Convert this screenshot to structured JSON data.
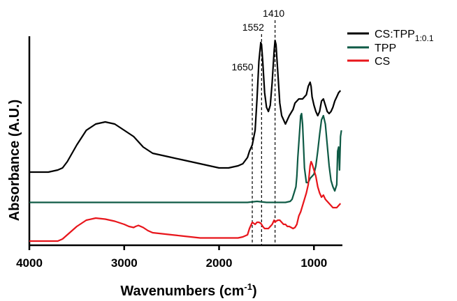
{
  "chart_data": {
    "type": "line",
    "xlabel": "Wavenumbers (cm",
    "xlabel_sup": "-1",
    "xlabel_end": ")",
    "ylabel": "Absorbance  (A.U.)",
    "xlim": [
      4000,
      700
    ],
    "x_reversed": true,
    "x_ticks": [
      4000,
      3000,
      2000,
      1000
    ],
    "x_tick_labels": [
      "4000",
      "3000",
      "2000",
      "1000"
    ],
    "y_ticks_shown": false,
    "grid": false,
    "legend_position": "top-right",
    "annotations": [
      {
        "x": 1650,
        "label": "1650"
      },
      {
        "x": 1552,
        "label": "1552"
      },
      {
        "x": 1410,
        "label": "1410"
      }
    ],
    "series": [
      {
        "name": "CS:TPP",
        "name_sub": "1:0.1",
        "color": "#000000",
        "x": [
          4000,
          3900,
          3800,
          3700,
          3650,
          3600,
          3500,
          3400,
          3300,
          3200,
          3100,
          3000,
          2900,
          2800,
          2700,
          2600,
          2500,
          2400,
          2300,
          2200,
          2100,
          2000,
          1900,
          1800,
          1750,
          1700,
          1680,
          1650,
          1620,
          1600,
          1580,
          1560,
          1552,
          1540,
          1520,
          1500,
          1480,
          1460,
          1440,
          1420,
          1410,
          1400,
          1380,
          1360,
          1340,
          1300,
          1260,
          1220,
          1200,
          1160,
          1120,
          1080,
          1060,
          1040,
          1030,
          1020,
          1000,
          980,
          960,
          940,
          920,
          900,
          880,
          860,
          840,
          820,
          800,
          780,
          760,
          740,
          720
        ],
        "values": [
          0.35,
          0.35,
          0.35,
          0.36,
          0.37,
          0.4,
          0.48,
          0.55,
          0.58,
          0.59,
          0.58,
          0.55,
          0.52,
          0.47,
          0.44,
          0.43,
          0.42,
          0.41,
          0.4,
          0.39,
          0.38,
          0.37,
          0.37,
          0.38,
          0.39,
          0.42,
          0.45,
          0.48,
          0.55,
          0.7,
          0.88,
          0.97,
          0.96,
          0.88,
          0.73,
          0.66,
          0.64,
          0.67,
          0.78,
          0.93,
          0.98,
          0.96,
          0.82,
          0.68,
          0.62,
          0.58,
          0.62,
          0.65,
          0.68,
          0.7,
          0.7,
          0.72,
          0.76,
          0.78,
          0.76,
          0.71,
          0.67,
          0.64,
          0.62,
          0.64,
          0.69,
          0.7,
          0.67,
          0.64,
          0.63,
          0.64,
          0.66,
          0.69,
          0.71,
          0.73,
          0.74
        ]
      },
      {
        "name": "TPP",
        "color": "#0e5a45",
        "x": [
          4000,
          3800,
          3600,
          3400,
          3200,
          3000,
          2800,
          2600,
          2400,
          2200,
          2000,
          1800,
          1700,
          1600,
          1500,
          1400,
          1300,
          1250,
          1230,
          1210,
          1190,
          1180,
          1170,
          1150,
          1140,
          1130,
          1120,
          1110,
          1100,
          1080,
          1060,
          1040,
          1020,
          1000,
          980,
          960,
          940,
          920,
          900,
          880,
          860,
          840,
          820,
          800,
          780,
          760,
          750,
          740,
          730,
          720,
          710
        ],
        "values": [
          0.205,
          0.205,
          0.205,
          0.205,
          0.205,
          0.205,
          0.205,
          0.205,
          0.205,
          0.205,
          0.205,
          0.205,
          0.205,
          0.21,
          0.205,
          0.205,
          0.205,
          0.21,
          0.22,
          0.25,
          0.28,
          0.33,
          0.42,
          0.55,
          0.62,
          0.63,
          0.58,
          0.48,
          0.37,
          0.3,
          0.3,
          0.32,
          0.33,
          0.34,
          0.38,
          0.45,
          0.53,
          0.6,
          0.62,
          0.58,
          0.48,
          0.38,
          0.31,
          0.28,
          0.26,
          0.29,
          0.45,
          0.47,
          0.36,
          0.52,
          0.55
        ]
      },
      {
        "name": "CS",
        "color": "#e8151b",
        "x": [
          4000,
          3900,
          3800,
          3700,
          3650,
          3600,
          3500,
          3400,
          3300,
          3200,
          3100,
          3000,
          2950,
          2900,
          2880,
          2850,
          2800,
          2750,
          2700,
          2600,
          2500,
          2400,
          2300,
          2200,
          2100,
          2000,
          1900,
          1800,
          1750,
          1700,
          1680,
          1660,
          1650,
          1620,
          1600,
          1580,
          1560,
          1552,
          1540,
          1520,
          1500,
          1480,
          1460,
          1440,
          1420,
          1410,
          1400,
          1380,
          1360,
          1340,
          1320,
          1300,
          1280,
          1260,
          1240,
          1220,
          1200,
          1180,
          1160,
          1140,
          1120,
          1100,
          1080,
          1060,
          1040,
          1030,
          1020,
          1000,
          980,
          960,
          940,
          920,
          900,
          880,
          860,
          840,
          820,
          800,
          780,
          760,
          740,
          720
        ],
        "values": [
          0.02,
          0.02,
          0.02,
          0.02,
          0.03,
          0.05,
          0.09,
          0.12,
          0.13,
          0.125,
          0.115,
          0.1,
          0.09,
          0.085,
          0.09,
          0.095,
          0.085,
          0.07,
          0.06,
          0.055,
          0.05,
          0.045,
          0.04,
          0.035,
          0.035,
          0.035,
          0.035,
          0.035,
          0.04,
          0.05,
          0.08,
          0.1,
          0.11,
          0.1,
          0.11,
          0.11,
          0.105,
          0.1,
          0.09,
          0.08,
          0.08,
          0.08,
          0.09,
          0.1,
          0.12,
          0.11,
          0.115,
          0.12,
          0.12,
          0.11,
          0.1,
          0.1,
          0.09,
          0.09,
          0.085,
          0.08,
          0.085,
          0.1,
          0.14,
          0.16,
          0.19,
          0.22,
          0.25,
          0.29,
          0.38,
          0.4,
          0.39,
          0.36,
          0.33,
          0.28,
          0.25,
          0.23,
          0.24,
          0.22,
          0.21,
          0.2,
          0.19,
          0.18,
          0.18,
          0.18,
          0.19,
          0.2
        ]
      }
    ]
  }
}
